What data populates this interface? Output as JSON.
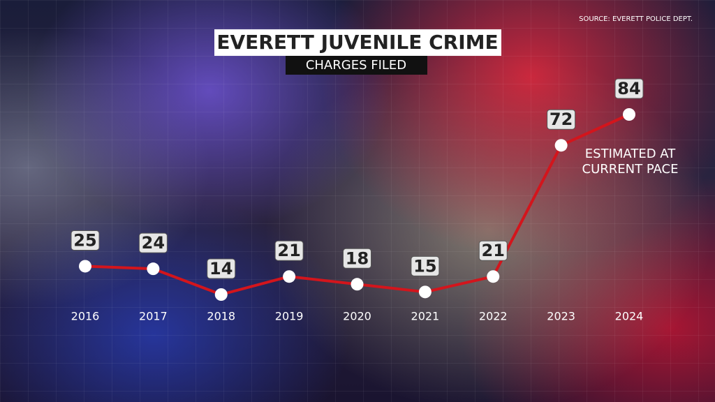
{
  "chart_data": {
    "type": "line",
    "title": "EVERETT JUVENILE CRIME",
    "subtitle": "CHARGES FILED",
    "source": "SOURCE: EVERETT POLICE DEPT.",
    "annotation": "ESTIMATED AT CURRENT PACE",
    "categories": [
      "2016",
      "2017",
      "2018",
      "2019",
      "2020",
      "2021",
      "2022",
      "2023",
      "2024"
    ],
    "values": [
      25,
      24,
      14,
      21,
      18,
      15,
      21,
      72,
      84
    ],
    "color": "#d3151c"
  }
}
